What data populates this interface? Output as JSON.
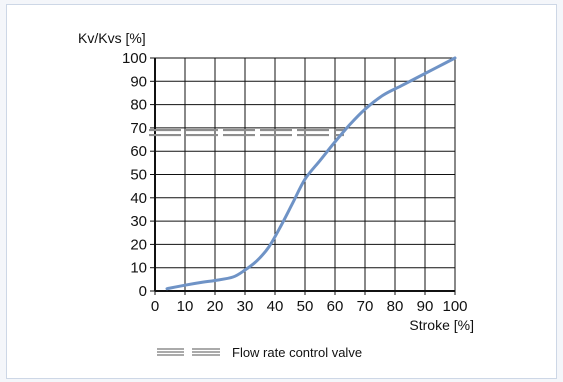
{
  "chart_data": {
    "type": "line",
    "ylabel": "Kv/Kvs [%]",
    "xlabel": "Stroke [%]",
    "xlim": [
      0,
      100
    ],
    "ylim": [
      0,
      100
    ],
    "x_ticks": [
      0,
      10,
      20,
      30,
      40,
      50,
      60,
      70,
      80,
      90,
      100
    ],
    "y_ticks": [
      0,
      10,
      20,
      30,
      40,
      50,
      60,
      70,
      80,
      90,
      100
    ],
    "grid": true,
    "series": [
      {
        "name": "Flow rate control valve",
        "color": "#6f93c6",
        "points": [
          [
            4,
            1
          ],
          [
            10,
            2.5
          ],
          [
            16,
            3.8
          ],
          [
            20,
            4.5
          ],
          [
            26,
            6
          ],
          [
            30,
            9
          ],
          [
            34,
            13
          ],
          [
            38,
            19
          ],
          [
            42,
            28
          ],
          [
            46,
            38
          ],
          [
            50,
            48
          ],
          [
            55,
            56
          ],
          [
            60,
            64
          ],
          [
            65,
            71.5
          ],
          [
            70,
            78
          ],
          [
            76,
            84
          ],
          [
            82,
            88
          ],
          [
            88,
            92
          ],
          [
            94,
            96
          ],
          [
            100,
            100
          ]
        ]
      }
    ],
    "reference_line": {
      "y": 68,
      "x_range": [
        0,
        63
      ]
    },
    "legend": {
      "label": "Flow rate control valve",
      "position": "bottom-center"
    },
    "colors": {
      "line": "#6f93c6",
      "grid": "#111111",
      "legend_bars": "#8e8e8e"
    }
  }
}
